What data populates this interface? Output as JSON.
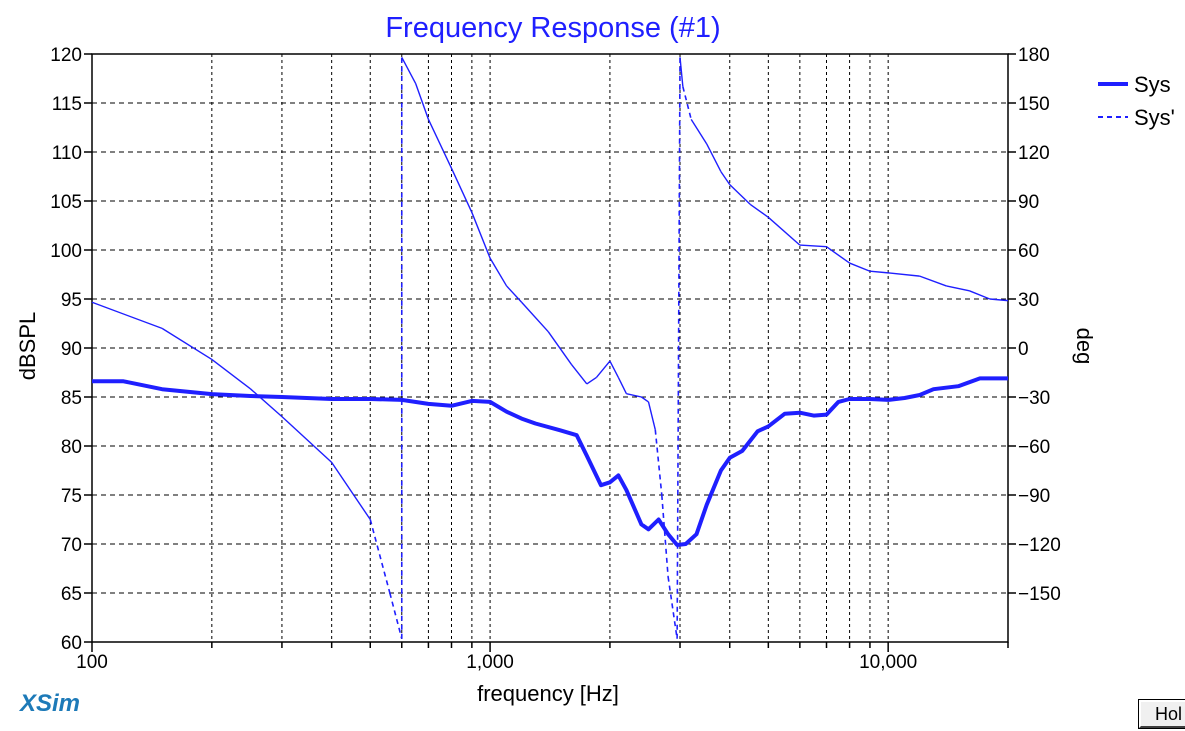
{
  "app": {
    "logo": "XSim",
    "hold_button_label": "Hol"
  },
  "chart_data": {
    "type": "line",
    "title": "Frequency Response (#1)",
    "xlabel": "frequency [Hz]",
    "ylabel_left": "dBSPL",
    "ylabel_right": "deg",
    "x_scale": "log",
    "xlim": [
      100,
      20000
    ],
    "ylim_left": [
      60,
      120
    ],
    "ylim_right": [
      -180,
      180
    ],
    "x_tick_labels": [
      {
        "value": 100,
        "label": "100"
      },
      {
        "value": 1000,
        "label": "1,000"
      },
      {
        "value": 10000,
        "label": "10,000"
      }
    ],
    "y_left_ticks": [
      60,
      65,
      70,
      75,
      80,
      85,
      90,
      95,
      100,
      105,
      110,
      115,
      120
    ],
    "y_right_ticks": [
      -150,
      -120,
      -90,
      -60,
      -30,
      0,
      30,
      60,
      90,
      120,
      150,
      180
    ],
    "grid": true,
    "legend_position": "top-right",
    "colors": {
      "series": "#1f1fff",
      "title": "#1f1fff",
      "grid": "#000000",
      "logo": "#1d7ab8"
    },
    "series": [
      {
        "name": "Sys",
        "axis": "left",
        "style": "solid-thick",
        "points": [
          [
            100,
            86.6
          ],
          [
            120,
            86.6
          ],
          [
            150,
            85.8
          ],
          [
            200,
            85.3
          ],
          [
            250,
            85.1
          ],
          [
            300,
            85.0
          ],
          [
            400,
            84.8
          ],
          [
            500,
            84.8
          ],
          [
            600,
            84.7
          ],
          [
            700,
            84.3
          ],
          [
            800,
            84.1
          ],
          [
            900,
            84.6
          ],
          [
            1000,
            84.5
          ],
          [
            1100,
            83.5
          ],
          [
            1200,
            82.8
          ],
          [
            1300,
            82.3
          ],
          [
            1500,
            81.6
          ],
          [
            1650,
            81.1
          ],
          [
            1750,
            79.0
          ],
          [
            1900,
            76.0
          ],
          [
            2000,
            76.3
          ],
          [
            2100,
            77.0
          ],
          [
            2200,
            75.5
          ],
          [
            2400,
            72.0
          ],
          [
            2500,
            71.5
          ],
          [
            2650,
            72.5
          ],
          [
            2800,
            71.0
          ],
          [
            2950,
            69.9
          ],
          [
            3100,
            70.0
          ],
          [
            3300,
            71.0
          ],
          [
            3500,
            74.0
          ],
          [
            3800,
            77.5
          ],
          [
            4000,
            78.8
          ],
          [
            4300,
            79.5
          ],
          [
            4700,
            81.5
          ],
          [
            5000,
            82.0
          ],
          [
            5500,
            83.3
          ],
          [
            6000,
            83.4
          ],
          [
            6500,
            83.1
          ],
          [
            7000,
            83.2
          ],
          [
            7500,
            84.5
          ],
          [
            8000,
            84.8
          ],
          [
            9000,
            84.8
          ],
          [
            10000,
            84.7
          ],
          [
            11000,
            84.9
          ],
          [
            12000,
            85.2
          ],
          [
            13000,
            85.8
          ],
          [
            15000,
            86.1
          ],
          [
            17000,
            86.9
          ],
          [
            20000,
            86.9
          ]
        ]
      },
      {
        "name": "Sys'",
        "axis": "right",
        "style": "thin-phase",
        "points": [
          [
            100,
            28
          ],
          [
            150,
            12
          ],
          [
            200,
            -7
          ],
          [
            250,
            -25
          ],
          [
            300,
            -42
          ],
          [
            400,
            -70
          ],
          [
            500,
            -105
          ],
          [
            560,
            -150
          ],
          [
            600,
            -178
          ],
          [
            600,
            178
          ],
          [
            650,
            162
          ],
          [
            700,
            140
          ],
          [
            800,
            110
          ],
          [
            900,
            83
          ],
          [
            1000,
            55
          ],
          [
            1100,
            38
          ],
          [
            1200,
            28
          ],
          [
            1400,
            10
          ],
          [
            1600,
            -10
          ],
          [
            1750,
            -22
          ],
          [
            1850,
            -18
          ],
          [
            2000,
            -8
          ],
          [
            2100,
            -18
          ],
          [
            2200,
            -28
          ],
          [
            2400,
            -30
          ],
          [
            2500,
            -33
          ],
          [
            2600,
            -50
          ],
          [
            2700,
            -90
          ],
          [
            2800,
            -140
          ],
          [
            2950,
            -178
          ],
          [
            3000,
            178
          ],
          [
            3050,
            160
          ],
          [
            3200,
            140
          ],
          [
            3500,
            125
          ],
          [
            3800,
            108
          ],
          [
            4000,
            100
          ],
          [
            4500,
            88
          ],
          [
            5000,
            80
          ],
          [
            6000,
            63
          ],
          [
            7000,
            62
          ],
          [
            8000,
            52
          ],
          [
            9000,
            47
          ],
          [
            10000,
            46
          ],
          [
            12000,
            44
          ],
          [
            14000,
            38
          ],
          [
            16000,
            35
          ],
          [
            18000,
            30
          ],
          [
            20000,
            29
          ]
        ]
      }
    ]
  }
}
